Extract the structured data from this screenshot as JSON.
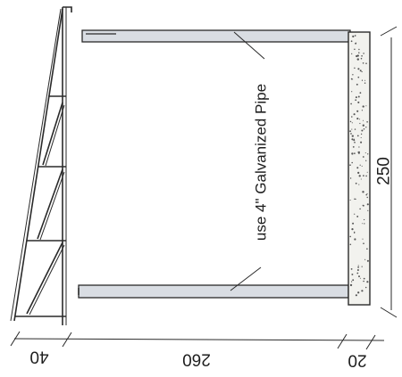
{
  "annotation": "use 4\" Galvanized Pipe",
  "dimensions": {
    "height": "250",
    "segment_a": "40",
    "segment_b": "260",
    "segment_c": "20"
  },
  "colors": {
    "line": "#2a2a2a",
    "pipe_fill": "#d9dde3",
    "concrete_fill": "#f2f2ee",
    "speckle": "#555555"
  }
}
